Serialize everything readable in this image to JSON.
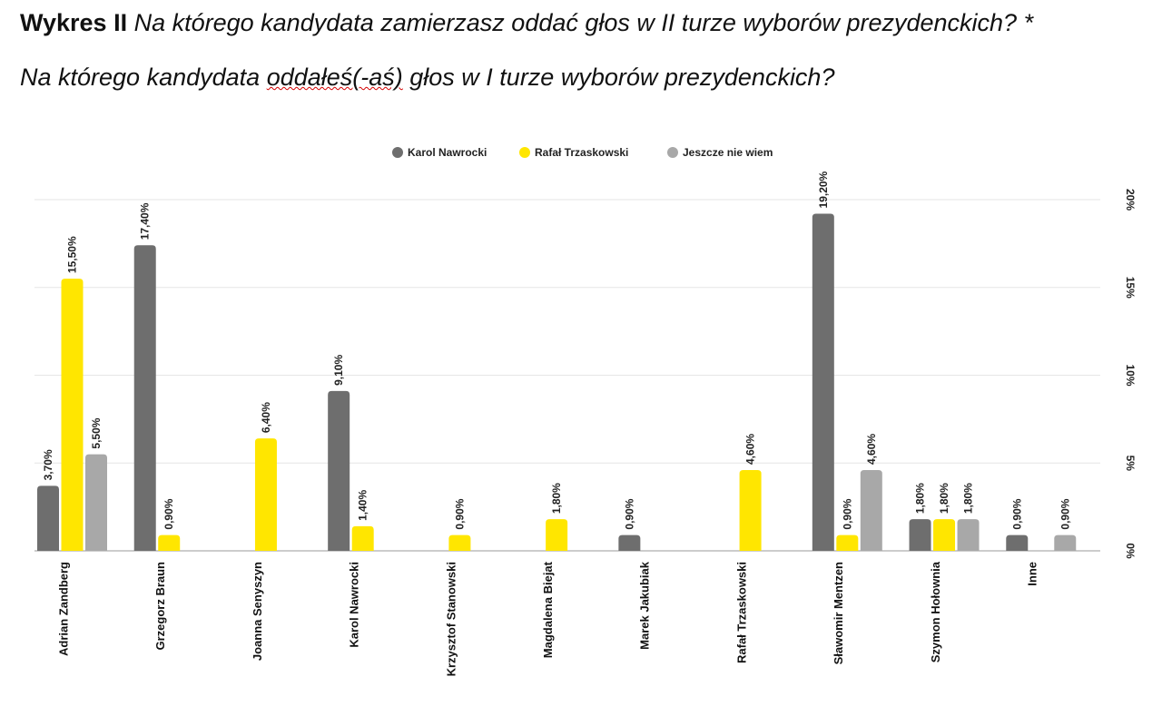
{
  "header": {
    "lead": "Wykres II",
    "question1": "Na którego kandydata zamierzasz oddać głos w II turze wyborów prezydenckich? *",
    "question2_pre": "Na którego kandydata ",
    "question2_mark": "oddałeś(-aś)",
    "question2_post": " głos w I turze wyborów prezydenckich?"
  },
  "chart_data": {
    "type": "bar",
    "categories": [
      "Adrian Zandberg",
      "Grzegorz Braun",
      "Joanna Senyszyn",
      "Karol Nawrocki",
      "Krzysztof Stanowski",
      "Magdalena Biejat",
      "Marek Jakubiak",
      "Rafał Trzaskowski",
      "Sławomir Mentzen",
      "Szymon Hołownia",
      "Inne"
    ],
    "series": [
      {
        "name": "Karol Nawrocki",
        "color": "#6e6e6e",
        "values": [
          3.7,
          17.4,
          null,
          9.1,
          null,
          null,
          0.9,
          null,
          19.2,
          1.8,
          0.9
        ],
        "labels": [
          "3,70%",
          "17,40%",
          null,
          "9,10%",
          null,
          null,
          "0,90%",
          null,
          "19,20%",
          "1,80%",
          "0,90%"
        ]
      },
      {
        "name": "Rafał Trzaskowski",
        "color": "#ffe600",
        "values": [
          15.5,
          0.9,
          6.4,
          1.4,
          0.9,
          1.8,
          null,
          4.6,
          0.9,
          1.8,
          null
        ],
        "labels": [
          "15,50%",
          "0,90%",
          "6,40%",
          "1,40%",
          "0,90%",
          "1,80%",
          null,
          "4,60%",
          "0,90%",
          "1,80%",
          null
        ]
      },
      {
        "name": "Jeszcze nie wiem",
        "color": "#a8a8a8",
        "values": [
          5.5,
          null,
          null,
          null,
          null,
          null,
          null,
          null,
          4.6,
          1.8,
          0.9
        ],
        "labels": [
          "5,50%",
          null,
          null,
          null,
          null,
          null,
          null,
          null,
          "4,60%",
          "1,80%",
          "0,90%"
        ]
      }
    ],
    "yticks": [
      "0%",
      "5%",
      "10%",
      "15%",
      "20%"
    ],
    "ylim": [
      0,
      20
    ],
    "yaxis_side": "right",
    "legend_position": "top-center",
    "grid": true
  }
}
